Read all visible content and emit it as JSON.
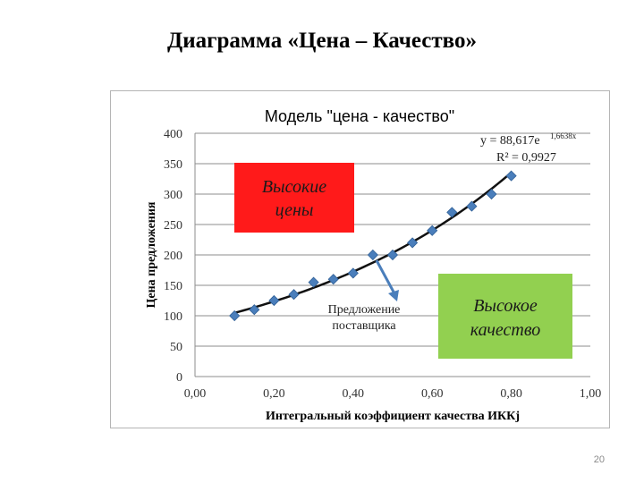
{
  "slide": {
    "title": "Диаграмма «Цена – Качество»",
    "page_number": "20"
  },
  "colors": {
    "points": "#4a7ebb",
    "trend": "#111111",
    "high_price_box": "#ff1a1a",
    "high_quality_box": "#92d050",
    "arrow": "#4a7ebb"
  },
  "annotations": {
    "equation": "y = 88,617e",
    "equation_exp": "1,6638x",
    "r_squared": "R² = 0,9927",
    "high_price_line1": "Высокие",
    "high_price_line2": "цены",
    "high_quality_line1": "Высокое",
    "high_quality_line2": "качество",
    "supplier_line1": "Предложение",
    "supplier_line2": "поставщика"
  },
  "chart_data": {
    "type": "scatter",
    "title": "Модель \"цена - качество\"",
    "xlabel": "Интегральный коэффициент качества ИККj",
    "ylabel": "Цена предложения",
    "xlim": [
      0.0,
      1.0
    ],
    "ylim": [
      0,
      400
    ],
    "x_ticks": [
      "0,00",
      "0,20",
      "0,40",
      "0,60",
      "0,80",
      "1,00"
    ],
    "y_ticks": [
      "0",
      "50",
      "100",
      "150",
      "200",
      "250",
      "300",
      "350",
      "400"
    ],
    "grid": "horizontal",
    "trendline": {
      "type": "exponential",
      "a": 88.617,
      "b": 1.6638,
      "x_from": 0.1,
      "x_to": 0.8
    },
    "series": [
      {
        "points": [
          [
            0.1,
            100
          ],
          [
            0.15,
            110
          ],
          [
            0.2,
            125
          ],
          [
            0.25,
            135
          ],
          [
            0.3,
            155
          ],
          [
            0.35,
            160
          ],
          [
            0.4,
            170
          ],
          [
            0.45,
            200
          ],
          [
            0.5,
            200
          ],
          [
            0.55,
            220
          ],
          [
            0.6,
            240
          ],
          [
            0.65,
            270
          ],
          [
            0.7,
            280
          ],
          [
            0.75,
            300
          ],
          [
            0.8,
            330
          ]
        ]
      }
    ]
  }
}
